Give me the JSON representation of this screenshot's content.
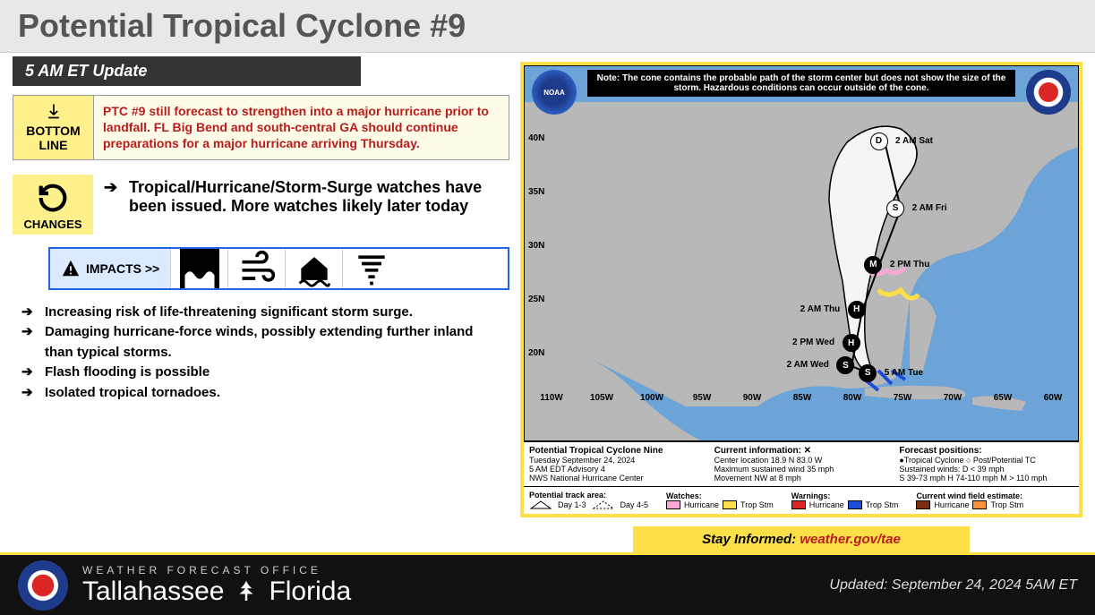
{
  "title": "Potential Tropical Cyclone #9",
  "update_label": "5 AM ET Update",
  "bottom_line": {
    "label_line1": "BOTTOM",
    "label_line2": "LINE",
    "text": "PTC #9 still forecast to strengthen into a major hurricane prior to landfall. FL Big Bend and south-central GA should continue preparations for a major hurricane arriving Thursday."
  },
  "changes": {
    "label": "CHANGES",
    "text": "Tropical/Hurricane/Storm-Surge watches have been issued. More watches likely later today"
  },
  "impacts_label": "IMPACTS >>",
  "impacts_bullets": [
    "Increasing risk of life-threatening significant storm surge.",
    "Damaging hurricane-force winds, possibly extending further inland than typical storms.",
    "Flash flooding is possible",
    "Isolated tropical tornadoes."
  ],
  "map": {
    "note": "Note: The cone contains the probable path of the storm center but does not show the size of the storm. Hazardous conditions can occur outside of the cone.",
    "lat_labels": [
      "40N",
      "35N",
      "30N",
      "25N",
      "20N"
    ],
    "lon_labels": [
      "110W",
      "105W",
      "100W",
      "95W",
      "90W",
      "85W",
      "80W",
      "75W",
      "70W",
      "65W",
      "60W"
    ],
    "track_points": [
      {
        "letter": "S",
        "solid": true,
        "x": 62,
        "y": 82,
        "label": "5 AM Tue",
        "label_side": "right"
      },
      {
        "letter": "S",
        "solid": true,
        "x": 58,
        "y": 80,
        "label": "2 AM Wed",
        "label_side": "left"
      },
      {
        "letter": "H",
        "solid": true,
        "x": 59,
        "y": 74,
        "label": "2 PM Wed",
        "label_side": "left"
      },
      {
        "letter": "H",
        "solid": true,
        "x": 60,
        "y": 65,
        "label": "2 AM Thu",
        "label_side": "left"
      },
      {
        "letter": "M",
        "solid": true,
        "x": 63,
        "y": 53,
        "label": "2 PM Thu",
        "label_side": "right"
      },
      {
        "letter": "S",
        "solid": false,
        "x": 67,
        "y": 38,
        "label": "2 AM Fri",
        "label_side": "right"
      },
      {
        "letter": "D",
        "solid": false,
        "x": 64,
        "y": 20,
        "label": "2 AM Sat",
        "label_side": "right"
      }
    ],
    "info": {
      "title": "Potential Tropical Cyclone Nine",
      "date": "Tuesday September 24, 2024",
      "advisory": "5 AM EDT Advisory 4",
      "source": "NWS National Hurricane Center",
      "current_hdr": "Current information: ✕",
      "center": "Center location 18.9 N 83.0 W",
      "wind": "Maximum sustained wind 35 mph",
      "movement": "Movement NW at 8 mph",
      "positions_hdr": "Forecast positions:",
      "pos1": "●Tropical Cyclone   ○ Post/Potential TC",
      "pos2": "Sustained winds:    D < 39 mph",
      "pos3": "S 39-73 mph  H 74-110 mph  M > 110 mph"
    },
    "legend": {
      "track_label": "Potential track area:",
      "day13": "Day 1-3",
      "day45": "Day 4-5",
      "watches": "Watches:",
      "warnings": "Warnings:",
      "windfield": "Current wind field estimate:",
      "hurricane": "Hurricane",
      "tropstm": "Trop Stm",
      "colors": {
        "watch_hurricane": "#f9a8d4",
        "watch_tropstm": "#fde047",
        "warn_hurricane": "#dc2626",
        "warn_tropstm": "#1d4ed8",
        "wind_hurricane": "#7c2d12",
        "wind_tropstm": "#fb923c"
      }
    }
  },
  "stay_informed": {
    "label": "Stay Informed: ",
    "url": "weather.gov/tae"
  },
  "footer": {
    "line1": "WEATHER FORECAST OFFICE",
    "city": "Tallahassee",
    "state": "Florida",
    "updated": "Updated: September 24, 2024 5AM ET"
  }
}
